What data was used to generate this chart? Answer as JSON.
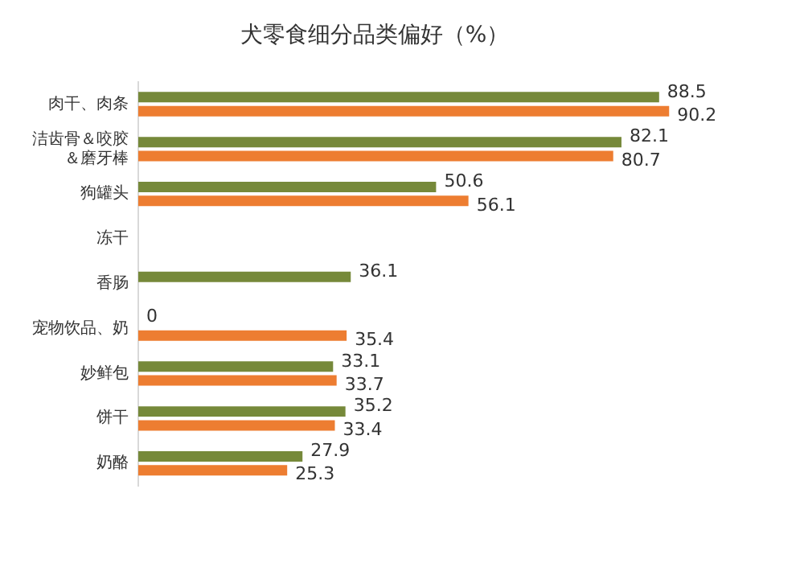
{
  "chart_data": {
    "type": "bar",
    "orientation": "horizontal",
    "title": "犬零食细分品类偏好（%）",
    "categories": [
      "肉干、肉条",
      "洁齿骨＆咬胶＆磨牙棒",
      "狗罐头",
      "冻干",
      "香肠",
      "宠物饮品、奶",
      "妙鲜包",
      "饼干",
      "奶酪"
    ],
    "series": [
      {
        "color": "#76893a",
        "values": [
          88.5,
          82.1,
          50.6,
          null,
          36.1,
          0,
          33.1,
          35.2,
          27.9
        ]
      },
      {
        "color": "#ed7d31",
        "values": [
          90.2,
          80.7,
          56.1,
          null,
          null,
          35.4,
          33.7,
          33.4,
          25.3
        ]
      }
    ],
    "data_labels": true,
    "legend": false
  }
}
